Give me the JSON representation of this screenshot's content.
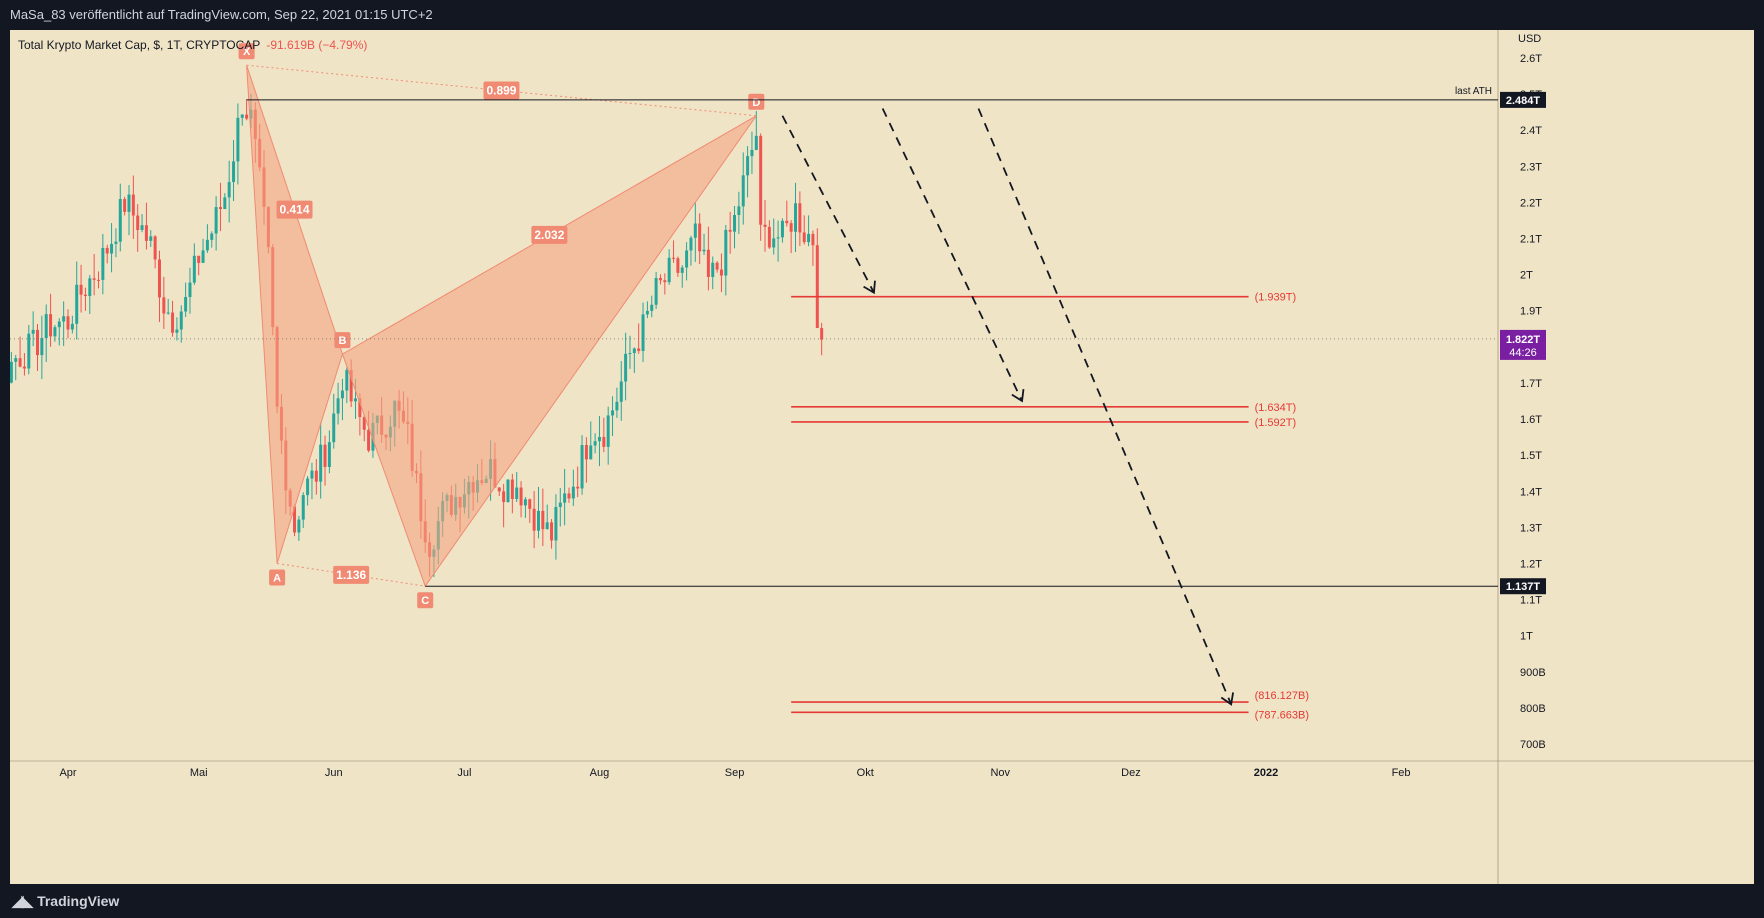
{
  "header": {
    "publisher": "MaSa_83 veröffentlicht auf TradingView.com, Sep 22, 2021 01:15 UTC+2"
  },
  "legend": {
    "symbol": "Total Krypto Market Cap, $, 1T, CRYPTOCAP",
    "change": "-91.619B (−4.79%)"
  },
  "branding": {
    "logo_text": "TradingView"
  },
  "colors": {
    "background": "#f0e4c6",
    "frame": "#131722",
    "up": "#26a69a",
    "down": "#ef5350",
    "pattern_fill": "#f4a582",
    "pattern_label": "#f08a73",
    "hline": "#e53935",
    "price_tag": "#7b1fa2"
  },
  "chart_data": {
    "type": "candlestick",
    "currency": "USD",
    "y_ticks": [
      "2.6T",
      "2.5T",
      "2.4T",
      "2.3T",
      "2.2T",
      "2.1T",
      "2T",
      "1.9T",
      "1.8T",
      "1.7T",
      "1.6T",
      "1.5T",
      "1.4T",
      "1.3T",
      "1.2T",
      "1.1T",
      "1T",
      "900B",
      "800B",
      "700B"
    ],
    "y_tick_values": [
      2.6,
      2.5,
      2.4,
      2.3,
      2.2,
      2.1,
      2.0,
      1.9,
      1.8,
      1.7,
      1.6,
      1.5,
      1.4,
      1.3,
      1.2,
      1.1,
      1.0,
      0.9,
      0.8,
      0.7
    ],
    "x_ticks": [
      "Apr",
      "Mai",
      "Jun",
      "Jul",
      "Aug",
      "Sep",
      "Okt",
      "Nov",
      "Dez",
      "2022",
      "Feb"
    ],
    "x_tick_dates": [
      "2021-04-01",
      "2021-05-01",
      "2021-06-01",
      "2021-07-01",
      "2021-08-01",
      "2021-09-01",
      "2021-10-01",
      "2021-11-01",
      "2021-12-01",
      "2022-01-01",
      "2022-02-01"
    ],
    "ylim": [
      0.7,
      2.6
    ],
    "close_path": [
      [
        "2021-03-01",
        1.77
      ],
      [
        "2021-03-05",
        1.72
      ],
      [
        "2021-03-10",
        1.68
      ],
      [
        "2021-03-13",
        1.62
      ],
      [
        "2021-03-16",
        1.7
      ],
      [
        "2021-03-20",
        1.77
      ],
      [
        "2021-03-24",
        1.8
      ],
      [
        "2021-03-28",
        1.86
      ],
      [
        "2021-04-01",
        1.87
      ],
      [
        "2021-04-04",
        1.95
      ],
      [
        "2021-04-08",
        2.02
      ],
      [
        "2021-04-11",
        2.1
      ],
      [
        "2021-04-14",
        2.2
      ],
      [
        "2021-04-17",
        2.15
      ],
      [
        "2021-04-20",
        2.08
      ],
      [
        "2021-04-23",
        1.92
      ],
      [
        "2021-04-25",
        1.88
      ],
      [
        "2021-04-28",
        1.92
      ],
      [
        "2021-05-01",
        2.05
      ],
      [
        "2021-05-04",
        2.12
      ],
      [
        "2021-05-07",
        2.22
      ],
      [
        "2021-05-09",
        2.34
      ],
      [
        "2021-05-11",
        2.48
      ],
      [
        "2021-05-13",
        2.43
      ],
      [
        "2021-05-15",
        2.25
      ],
      [
        "2021-05-17",
        2.04
      ],
      [
        "2021-05-19",
        1.62
      ],
      [
        "2021-05-21",
        1.45
      ],
      [
        "2021-05-23",
        1.3
      ],
      [
        "2021-05-25",
        1.4
      ],
      [
        "2021-05-28",
        1.45
      ],
      [
        "2021-05-31",
        1.55
      ],
      [
        "2021-06-03",
        1.72
      ],
      [
        "2021-06-06",
        1.62
      ],
      [
        "2021-06-09",
        1.55
      ],
      [
        "2021-06-12",
        1.58
      ],
      [
        "2021-06-15",
        1.63
      ],
      [
        "2021-06-18",
        1.55
      ],
      [
        "2021-06-21",
        1.35
      ],
      [
        "2021-06-23",
        1.26
      ],
      [
        "2021-06-26",
        1.34
      ],
      [
        "2021-06-30",
        1.4
      ],
      [
        "2021-07-03",
        1.44
      ],
      [
        "2021-07-07",
        1.46
      ],
      [
        "2021-07-10",
        1.42
      ],
      [
        "2021-07-13",
        1.42
      ],
      [
        "2021-07-16",
        1.36
      ],
      [
        "2021-07-19",
        1.3
      ],
      [
        "2021-07-21",
        1.28
      ],
      [
        "2021-07-24",
        1.38
      ],
      [
        "2021-07-27",
        1.45
      ],
      [
        "2021-07-30",
        1.57
      ],
      [
        "2021-08-02",
        1.57
      ],
      [
        "2021-08-05",
        1.66
      ],
      [
        "2021-08-08",
        1.78
      ],
      [
        "2021-08-11",
        1.85
      ],
      [
        "2021-08-14",
        1.95
      ],
      [
        "2021-08-17",
        2.0
      ],
      [
        "2021-08-20",
        2.02
      ],
      [
        "2021-08-23",
        2.1
      ],
      [
        "2021-08-26",
        1.98
      ],
      [
        "2021-08-29",
        2.04
      ],
      [
        "2021-09-01",
        2.15
      ],
      [
        "2021-09-04",
        2.3
      ],
      [
        "2021-09-06",
        2.39
      ],
      [
        "2021-09-07",
        2.1
      ],
      [
        "2021-09-09",
        2.12
      ],
      [
        "2021-09-12",
        2.1
      ],
      [
        "2021-09-15",
        2.18
      ],
      [
        "2021-09-17",
        2.12
      ],
      [
        "2021-09-19",
        2.1
      ],
      [
        "2021-09-20",
        1.9
      ],
      [
        "2021-09-21",
        1.82
      ]
    ],
    "harmonic_pattern": {
      "points": [
        {
          "label": "X",
          "date": "2021-05-12",
          "value": 2.58
        },
        {
          "label": "A",
          "date": "2021-05-19",
          "value": 1.2
        },
        {
          "label": "B",
          "date": "2021-06-03",
          "value": 1.78
        },
        {
          "label": "C",
          "date": "2021-06-22",
          "value": 1.137
        },
        {
          "label": "D",
          "date": "2021-09-06",
          "value": 2.44
        }
      ],
      "ratios": [
        {
          "label": "0.414",
          "from": "X",
          "to": "B"
        },
        {
          "label": "1.136",
          "from": "A",
          "to": "C"
        },
        {
          "label": "2.032",
          "from": "B",
          "to": "D"
        },
        {
          "label": "0.899",
          "from": "X",
          "to": "D"
        }
      ]
    },
    "horizontal_lines": [
      {
        "value": 2.484,
        "tag": "2.484T",
        "note": "last ATH"
      },
      {
        "value": 1.137,
        "tag": "1.137T"
      }
    ],
    "target_lines": [
      {
        "value": 1.939,
        "label": "(1.939T)"
      },
      {
        "value": 1.634,
        "label": "(1.634T)"
      },
      {
        "value": 1.592,
        "label": "(1.592T)"
      },
      {
        "value": 0.816127,
        "label": "(816.127B)"
      },
      {
        "value": 0.787663,
        "label": "(787.663B)"
      }
    ],
    "projection_arrows": [
      {
        "from": [
          "2021-09-12",
          2.44
        ],
        "to": [
          "2021-10-03",
          1.95
        ]
      },
      {
        "from": [
          "2021-10-05",
          2.46
        ],
        "to": [
          "2021-11-06",
          1.65
        ]
      },
      {
        "from": [
          "2021-10-27",
          2.46
        ],
        "to": [
          "2021-12-24",
          0.81
        ]
      }
    ],
    "current_price": {
      "tag": "1.822T",
      "countdown": "44:26",
      "value": 1.822
    }
  }
}
